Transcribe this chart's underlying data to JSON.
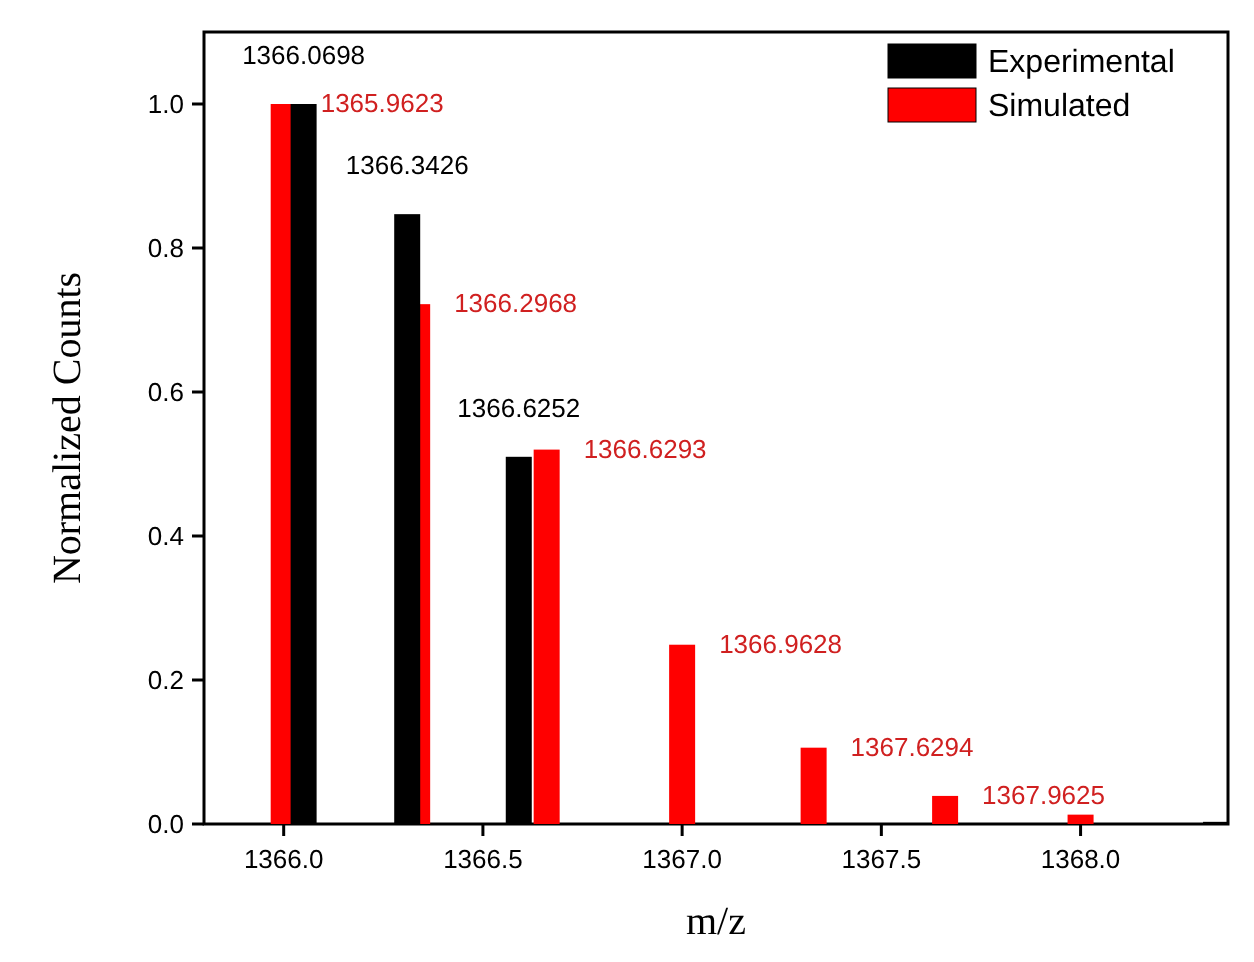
{
  "chart_data": {
    "type": "bar",
    "xlabel": "m/z",
    "ylabel": "Normalized Counts",
    "xlim": [
      1365.8,
      1368.37
    ],
    "ylim": [
      0,
      1.1
    ],
    "xticks": [
      {
        "value": 1366,
        "label": "1366.0"
      },
      {
        "value": 1366.5,
        "label": "1366.5"
      },
      {
        "value": 1367,
        "label": "1367.0"
      },
      {
        "value": 1367.5,
        "label": "1367.5"
      },
      {
        "value": 1368,
        "label": "1368.0"
      }
    ],
    "yticks": [
      {
        "value": 0,
        "label": "0.0"
      },
      {
        "value": 0.2,
        "label": "0.2"
      },
      {
        "value": 0.4,
        "label": "0.4"
      },
      {
        "value": 0.6,
        "label": "0.6"
      },
      {
        "value": 0.8,
        "label": "0.8"
      },
      {
        "value": 1,
        "label": "1.0"
      }
    ],
    "legend": "top right",
    "series": [
      {
        "name": "Experimental",
        "color": "#000000",
        "x": [
          1366.05,
          1366.31,
          1366.59,
          1368.34
        ],
        "values": [
          1.0,
          0.847,
          0.51,
          0.003
        ]
      },
      {
        "name": "Simulated",
        "color": "#ff0000",
        "x": [
          1366.0,
          1366.335,
          1366.66,
          1367.0,
          1367.33,
          1367.66,
          1368.0
        ],
        "values": [
          1.0,
          0.722,
          0.52,
          0.249,
          0.106,
          0.039,
          0.013
        ]
      }
    ],
    "annotations": [
      {
        "text": "1366.0698",
        "x": 1366.05,
        "y": 1.0
      },
      {
        "text": "1366.3426",
        "x": 1366.31,
        "y": 0.847
      },
      {
        "text": "1366.6252",
        "x": 1366.59,
        "y": 0.51
      },
      {
        "text": "1365.9623",
        "x": 1366.0,
        "y": 1.0
      },
      {
        "text": "1366.2968",
        "x": 1366.335,
        "y": 0.722
      },
      {
        "text": "1366.6293",
        "x": 1366.66,
        "y": 0.52
      },
      {
        "text": "1366.9628",
        "x": 1367.0,
        "y": 0.249
      },
      {
        "text": "1367.6294",
        "x": 1367.33,
        "y": 0.106
      },
      {
        "text": "1367.9625",
        "x": 1367.66,
        "y": 0.039
      }
    ]
  }
}
